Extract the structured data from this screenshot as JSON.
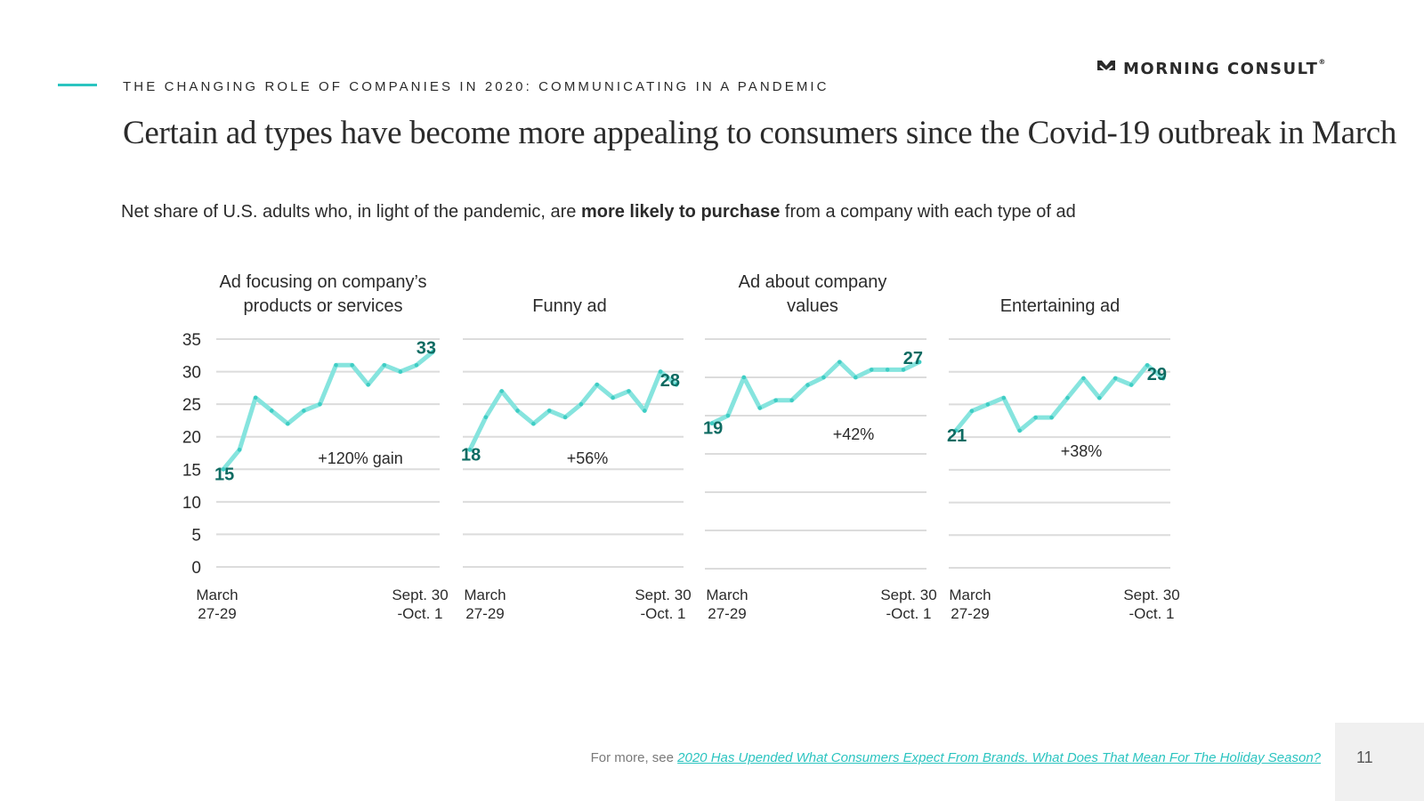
{
  "header": {
    "kicker": "THE CHANGING ROLE OF COMPANIES IN 2020: COMMUNICATING IN A PANDEMIC",
    "logo_text": "MORNING CONSULT",
    "logo_mark": "®",
    "logo_icon": "morning-consult-chevron-icon",
    "headline": "Certain ad types have become more appealing to consumers since the Covid-19 outbreak in March"
  },
  "subtitle": {
    "before": "Net share of U.S. adults who, in light of the pandemic, are ",
    "bold": "more likely to purchase",
    "after": " from a company with each type of ad"
  },
  "colors": {
    "accent": "#2bc4c0",
    "line": "#7fe3dc",
    "point": "#3fcdc4",
    "label": "#0e6b62",
    "grid": "#dcdcdc",
    "text": "#2b2b2b"
  },
  "chart_data": [
    {
      "type": "line",
      "title": [
        "Ad focusing on company’s",
        "products or services"
      ],
      "xlabel": "",
      "ylabel": "",
      "ylim": [
        0,
        35
      ],
      "yticks": [
        0,
        5,
        10,
        15,
        20,
        25,
        30,
        35
      ],
      "show_yticks": true,
      "x_start": [
        "March",
        "27-29"
      ],
      "x_end": [
        "Sept. 30",
        "-Oct. 1"
      ],
      "values": [
        15,
        18,
        26,
        24,
        22,
        24,
        25,
        31,
        31,
        28,
        31,
        30,
        31,
        33
      ],
      "start_label": "15",
      "end_label": "33",
      "annotation": "+120% gain",
      "grid": true
    },
    {
      "type": "line",
      "title": [
        "",
        "Funny ad"
      ],
      "xlabel": "",
      "ylabel": "",
      "ylim": [
        0,
        35
      ],
      "yticks": [
        0,
        5,
        10,
        15,
        20,
        25,
        30,
        35
      ],
      "show_yticks": false,
      "x_start": [
        "March",
        "27-29"
      ],
      "x_end": [
        "Sept. 30",
        "-Oct. 1"
      ],
      "values": [
        18,
        23,
        27,
        24,
        22,
        24,
        23,
        25,
        28,
        26,
        27,
        24,
        30,
        28
      ],
      "start_label": "18",
      "end_label": "28",
      "annotation": "+56%",
      "grid": true
    },
    {
      "type": "line",
      "title": [
        "Ad about company",
        "values"
      ],
      "xlabel": "",
      "ylabel": "",
      "ylim": [
        0,
        30
      ],
      "yticks": [
        0,
        5,
        10,
        15,
        20,
        25,
        30
      ],
      "show_yticks": false,
      "x_start": [
        "March",
        "27-29"
      ],
      "x_end": [
        "Sept. 30",
        "-Oct. 1"
      ],
      "values": [
        19,
        20,
        25,
        21,
        22,
        22,
        24,
        25,
        27,
        25,
        26,
        26,
        26,
        27
      ],
      "start_label": "19",
      "end_label": "27",
      "annotation": "+42%",
      "grid": true
    },
    {
      "type": "line",
      "title": [
        "",
        "Entertaining ad"
      ],
      "xlabel": "",
      "ylabel": "",
      "ylim": [
        0,
        35
      ],
      "yticks": [
        0,
        5,
        10,
        15,
        20,
        25,
        30,
        35
      ],
      "show_yticks": false,
      "x_start": [
        "March",
        "27-29"
      ],
      "x_end": [
        "Sept. 30",
        "-Oct. 1"
      ],
      "values": [
        21,
        24,
        25,
        26,
        21,
        23,
        23,
        26,
        29,
        26,
        29,
        28,
        31,
        29
      ],
      "start_label": "21",
      "end_label": "29",
      "annotation": "+38%",
      "grid": true
    }
  ],
  "footer": {
    "prefix": "For more, see ",
    "link_text": "2020 Has Upended What Consumers Expect From Brands. What Does That Mean For The Holiday Season?",
    "page_number": "11"
  }
}
